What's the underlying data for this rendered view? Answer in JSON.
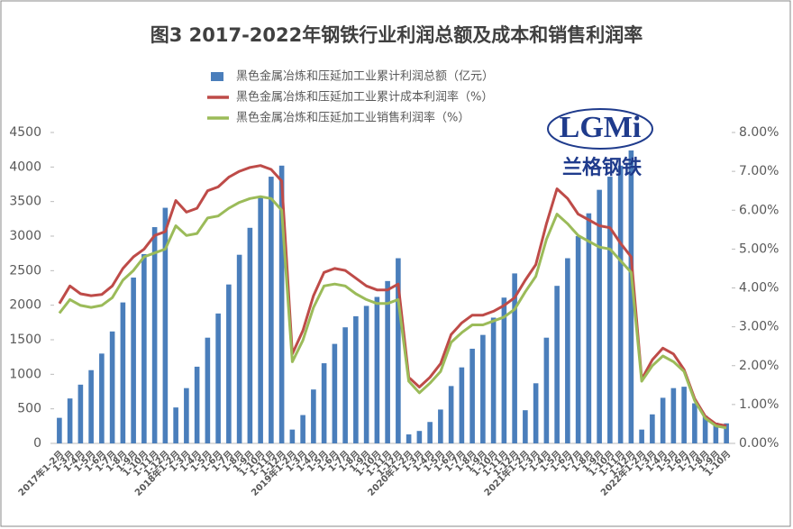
{
  "chart_data": {
    "type": "bar-line",
    "title": "图3 2017-2022年钢铁行业利润总额及成本和销售利润率",
    "logo": {
      "text": "LGMi",
      "subtext": "兰格钢铁"
    },
    "categories": [
      "2017年1-2月",
      "1-3月",
      "1-4月",
      "1-5月",
      "1-6月",
      "1-7月",
      "1-8月",
      "1-9月",
      "1-10月",
      "1-11月",
      "1-12月",
      "2018年1-2月",
      "1-3月",
      "1-4月",
      "1-5月",
      "1-6月",
      "1-7月",
      "1-8月",
      "1-9月",
      "1-10月",
      "1-11月",
      "1-12月",
      "2019年1-2月",
      "1-3月",
      "1-4月",
      "1-5月",
      "1-6月",
      "1-7月",
      "1-8月",
      "1-9月",
      "1-10月",
      "1-11月",
      "1-12月",
      "2020年1-2月",
      "1-3月",
      "1-4月",
      "1-5月",
      "1-6月",
      "1-7月",
      "1-8月",
      "1-9月",
      "1-10月",
      "1-11月",
      "1-12月",
      "2021年1-2月",
      "1-3月",
      "1-4月",
      "1-5月",
      "1-6月",
      "1-7月",
      "1-8月",
      "1-9月",
      "1-10月",
      "1-11月",
      "1-12月",
      "2022年1-2月",
      "1-3月",
      "1-4月",
      "1-5月",
      "1-6月",
      "1-7月",
      "1-8月",
      "1-9月",
      "1-10月"
    ],
    "series": [
      {
        "name": "黑色金属冶炼和压延加工业累计利润总额（亿元）",
        "kind": "bar",
        "color": "#4a7ebb",
        "axis": "y",
        "values": [
          370,
          650,
          850,
          1060,
          1300,
          1620,
          2040,
          2400,
          2740,
          3130,
          3410,
          520,
          800,
          1110,
          1530,
          1880,
          2300,
          2730,
          3120,
          3560,
          3860,
          4020,
          200,
          410,
          780,
          1160,
          1440,
          1680,
          1840,
          1990,
          2120,
          2350,
          2680,
          130,
          180,
          310,
          490,
          830,
          1100,
          1370,
          1570,
          1820,
          2110,
          2460,
          480,
          870,
          1530,
          2280,
          2680,
          3000,
          3330,
          3670,
          3860,
          4020,
          4240,
          200,
          420,
          660,
          800,
          820,
          580,
          400,
          300,
          290
        ]
      },
      {
        "name": "黑色金属冶炼和压延加工业累计成本利润率（%）",
        "kind": "line",
        "color": "#be4b48",
        "axis": "y2",
        "values": [
          3.6,
          4.05,
          3.85,
          3.8,
          3.83,
          4.05,
          4.5,
          4.8,
          5.0,
          5.35,
          5.45,
          6.25,
          5.95,
          6.05,
          6.5,
          6.6,
          6.85,
          7.0,
          7.1,
          7.15,
          7.05,
          6.75,
          2.3,
          2.9,
          3.8,
          4.4,
          4.5,
          4.45,
          4.25,
          4.05,
          3.95,
          3.95,
          4.1,
          1.7,
          1.45,
          1.7,
          2.05,
          2.8,
          3.1,
          3.3,
          3.3,
          3.4,
          3.55,
          3.75,
          4.2,
          4.6,
          5.65,
          6.55,
          6.3,
          5.9,
          5.75,
          5.6,
          5.55,
          5.15,
          4.8,
          1.65,
          2.15,
          2.45,
          2.3,
          1.9,
          1.15,
          0.7,
          0.5,
          0.45
        ]
      },
      {
        "name": "黑色金属冶炼和压延加工业销售利润率（%）",
        "kind": "line",
        "color": "#9bbb59",
        "axis": "y2",
        "values": [
          3.35,
          3.7,
          3.55,
          3.5,
          3.55,
          3.75,
          4.2,
          4.45,
          4.8,
          4.9,
          5.0,
          5.6,
          5.35,
          5.4,
          5.8,
          5.85,
          6.05,
          6.2,
          6.3,
          6.35,
          6.3,
          6.0,
          2.1,
          2.65,
          3.5,
          4.05,
          4.1,
          4.05,
          3.85,
          3.7,
          3.6,
          3.6,
          3.7,
          1.6,
          1.3,
          1.55,
          1.85,
          2.6,
          2.85,
          3.05,
          3.05,
          3.15,
          3.25,
          3.45,
          3.9,
          4.3,
          5.25,
          5.9,
          5.65,
          5.35,
          5.2,
          5.05,
          5.0,
          4.7,
          4.4,
          1.6,
          2.0,
          2.25,
          2.1,
          1.85,
          1.1,
          0.65,
          0.45,
          0.4
        ]
      }
    ],
    "ylim": [
      0,
      4500
    ],
    "yticks": [
      0,
      500,
      1000,
      1500,
      2000,
      2500,
      3000,
      3500,
      4000,
      4500
    ],
    "y2lim": [
      0,
      8
    ],
    "y2ticks": [
      {
        "value": 0,
        "label": "0.00%"
      },
      {
        "value": 1,
        "label": "1.00%"
      },
      {
        "value": 2,
        "label": "2.00%"
      },
      {
        "value": 3,
        "label": "3.00%"
      },
      {
        "value": 4,
        "label": "4.00%"
      },
      {
        "value": 5,
        "label": "5.00%"
      },
      {
        "value": 6,
        "label": "6.00%"
      },
      {
        "value": 7,
        "label": "7.00%"
      },
      {
        "value": 8,
        "label": "8.00%"
      }
    ],
    "legend": "top"
  }
}
